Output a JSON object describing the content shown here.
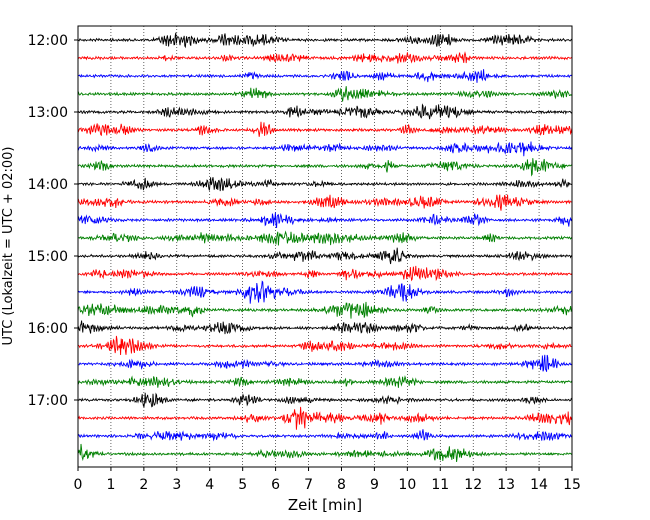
{
  "chart_data": {
    "type": "line",
    "title": "",
    "xlabel": "Zeit  [min]",
    "ylabel": "UTC (Lokalzeit = UTC + 02:00)",
    "xlim": [
      0,
      15
    ],
    "x_ticks": [
      "0",
      "1",
      "2",
      "3",
      "4",
      "5",
      "6",
      "7",
      "8",
      "9",
      "10",
      "11",
      "12",
      "13",
      "14",
      "15"
    ],
    "y_ticks": [
      "12:00",
      "13:00",
      "14:00",
      "15:00",
      "16:00",
      "17:00"
    ],
    "grid": "vertical dotted",
    "trace_start": "12:00",
    "trace_interval_minutes": 15,
    "trace_count": 24,
    "trace_colors": [
      "#000000",
      "#ff0000",
      "#0000ff",
      "#008000"
    ]
  }
}
